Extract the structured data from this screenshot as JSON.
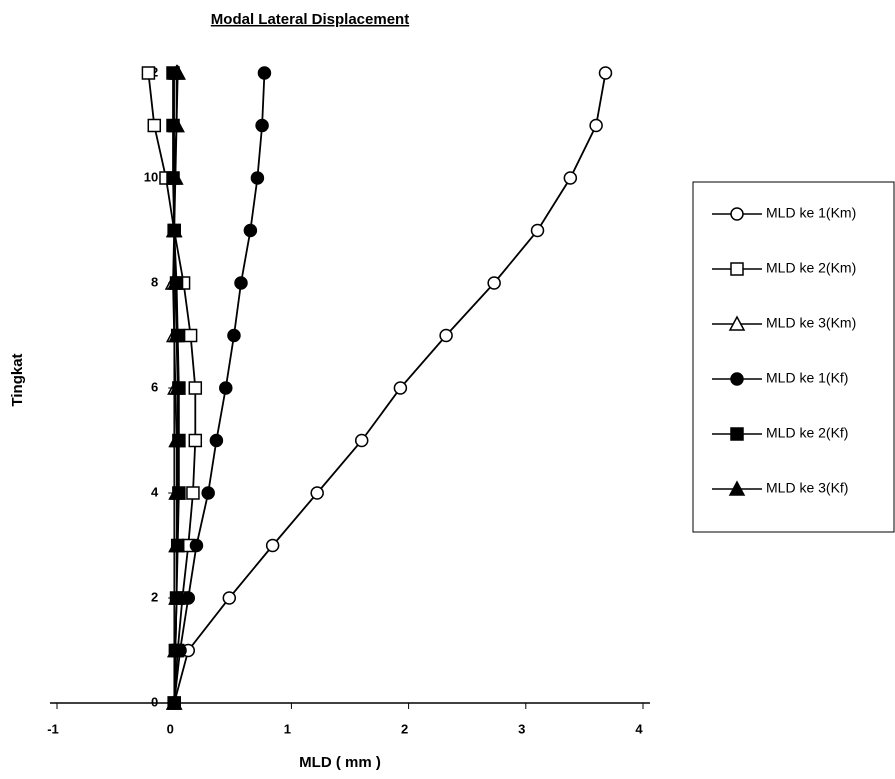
{
  "chart_data": {
    "type": "line",
    "title": "Modal Lateral Displacement",
    "x_label": "MLD ( mm )",
    "y_label": "Tingkat",
    "xlim": [
      -1,
      4
    ],
    "xticks": [
      -1,
      0,
      1,
      2,
      3,
      4
    ],
    "ylim": [
      0,
      12
    ],
    "yticks": [
      0,
      2,
      4,
      6,
      8,
      10,
      12
    ],
    "y": [
      0,
      1,
      2,
      3,
      4,
      5,
      6,
      7,
      8,
      9,
      10,
      11,
      12
    ],
    "legend": "right",
    "series": [
      {
        "name": "MLD ke 1(Km)",
        "color": "#000000",
        "marker": "circle",
        "filled": false,
        "values": [
          0,
          0.12,
          0.47,
          0.84,
          1.22,
          1.6,
          1.93,
          2.32,
          2.73,
          3.1,
          3.38,
          3.6,
          3.68
        ]
      },
      {
        "name": "MLD ke 2(Km)",
        "color": "#000000",
        "marker": "square",
        "filled": false,
        "values": [
          0,
          0.03,
          0.07,
          0.12,
          0.16,
          0.18,
          0.18,
          0.14,
          0.08,
          0,
          -0.07,
          -0.17,
          -0.22
        ]
      },
      {
        "name": "MLD ke 3(Km)",
        "color": "#000000",
        "marker": "triangle",
        "filled": false,
        "values": [
          0,
          0.01,
          0.02,
          0.02,
          0.02,
          0.02,
          0.01,
          0,
          -0.01,
          0,
          0,
          0.02,
          0.02
        ]
      },
      {
        "name": "MLD ke 1(Kf)",
        "color": "#000000",
        "marker": "circle",
        "filled": true,
        "values": [
          0,
          0.05,
          0.12,
          0.19,
          0.29,
          0.36,
          0.44,
          0.51,
          0.57,
          0.65,
          0.71,
          0.75,
          0.77
        ]
      },
      {
        "name": "MLD ke 2(Kf)",
        "color": "#000000",
        "marker": "square",
        "filled": true,
        "values": [
          0,
          0.01,
          0.02,
          0.03,
          0.04,
          0.04,
          0.04,
          0.03,
          0.02,
          0,
          -0.01,
          -0.01,
          -0.01
        ]
      },
      {
        "name": "MLD ke 3(Kf)",
        "color": "#000000",
        "marker": "triangle",
        "filled": true,
        "values": [
          0,
          0.01,
          0.02,
          0.02,
          0.03,
          0.03,
          0.03,
          0.02,
          0.01,
          0,
          0.01,
          0.02,
          0.03
        ]
      }
    ]
  }
}
